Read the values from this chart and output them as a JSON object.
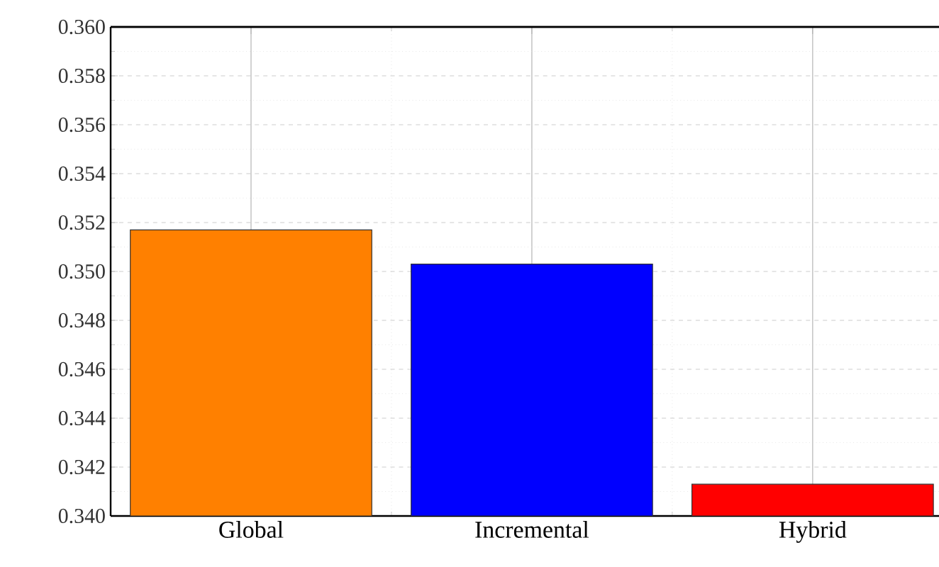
{
  "chart_data": {
    "type": "bar",
    "categories": [
      "Global",
      "Incremental",
      "Hybrid"
    ],
    "values": [
      0.3517,
      0.3503,
      0.3413
    ],
    "colors": [
      "#ff8000",
      "#0000ff",
      "#ff0000"
    ],
    "ylim": [
      0.34,
      0.36
    ],
    "yticks": [
      {
        "value": 0.34,
        "label": "0.340"
      },
      {
        "value": 0.342,
        "label": "0.342"
      },
      {
        "value": 0.344,
        "label": "0.344"
      },
      {
        "value": 0.346,
        "label": "0.346"
      },
      {
        "value": 0.348,
        "label": "0.348"
      },
      {
        "value": 0.35,
        "label": "0.350"
      },
      {
        "value": 0.352,
        "label": "0.352"
      },
      {
        "value": 0.354,
        "label": "0.354"
      },
      {
        "value": 0.356,
        "label": "0.356"
      },
      {
        "value": 0.358,
        "label": "0.358"
      },
      {
        "value": 0.36,
        "label": "0.360"
      }
    ],
    "grid": true
  }
}
